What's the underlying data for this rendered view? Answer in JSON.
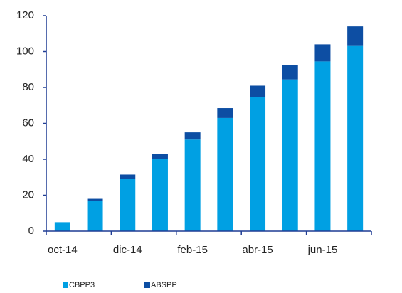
{
  "chart_data": {
    "type": "stacked_bar",
    "categories": [
      "oct-14",
      null,
      "dic-14",
      null,
      "feb-15",
      null,
      "abr-15",
      null,
      "jun-15",
      null
    ],
    "series": [
      {
        "name": "CBPP3",
        "color": "#00a0e3",
        "values": [
          5,
          17,
          29,
          40,
          51,
          63,
          74.5,
          84.5,
          94.5,
          103.5
        ]
      },
      {
        "name": "ABSPP",
        "color": "#0d4ea3",
        "values": [
          0,
          1,
          2.5,
          3,
          4,
          5.5,
          6.5,
          8,
          9.5,
          10.5
        ]
      }
    ],
    "ylim": [
      0,
      120
    ],
    "yticks": [
      0,
      20,
      40,
      60,
      80,
      100,
      120
    ],
    "grid": false,
    "legend": "bottom"
  }
}
